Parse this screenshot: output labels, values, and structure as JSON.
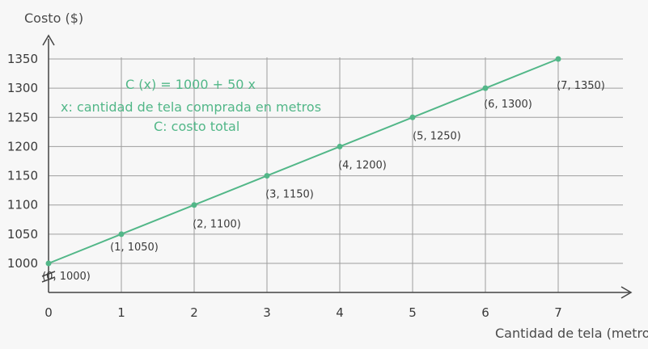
{
  "chart_data": {
    "type": "line",
    "title": "",
    "ylabel": "Costo ($)",
    "xlabel": "Cantidad de tela (metros",
    "x": [
      0,
      1,
      2,
      3,
      4,
      5,
      6,
      7
    ],
    "xlim": [
      0,
      7
    ],
    "ylim": [
      1000,
      1350
    ],
    "yticks": [
      1000,
      1050,
      1100,
      1150,
      1200,
      1250,
      1300,
      1350
    ],
    "xticks": [
      0,
      1,
      2,
      3,
      4,
      5,
      6,
      7
    ],
    "series": [
      {
        "name": "",
        "x": [
          0,
          1,
          2,
          3,
          4,
          5,
          6,
          7
        ],
        "values": [
          1000,
          1050,
          1100,
          1150,
          1200,
          1250,
          1300,
          1350
        ]
      }
    ],
    "point_labels": [
      "(0, 1000)",
      "(1, 1050)",
      "(2, 1100)",
      "(3, 1150)",
      "(4, 1200)",
      "(5, 1250)",
      "(6, 1300)",
      "(7, 1350)"
    ],
    "annotations": [
      "C (x) = 1000 + 50 x",
      "x: cantidad de tela comprada en metros",
      "C: costo total"
    ],
    "grid": true,
    "axis_break_on_y": true,
    "colors": {
      "line": "#52b788",
      "text_green": "#52b788",
      "grid": "#9e9e9e",
      "axis": "#444444",
      "background": "#f5f5f5"
    }
  }
}
